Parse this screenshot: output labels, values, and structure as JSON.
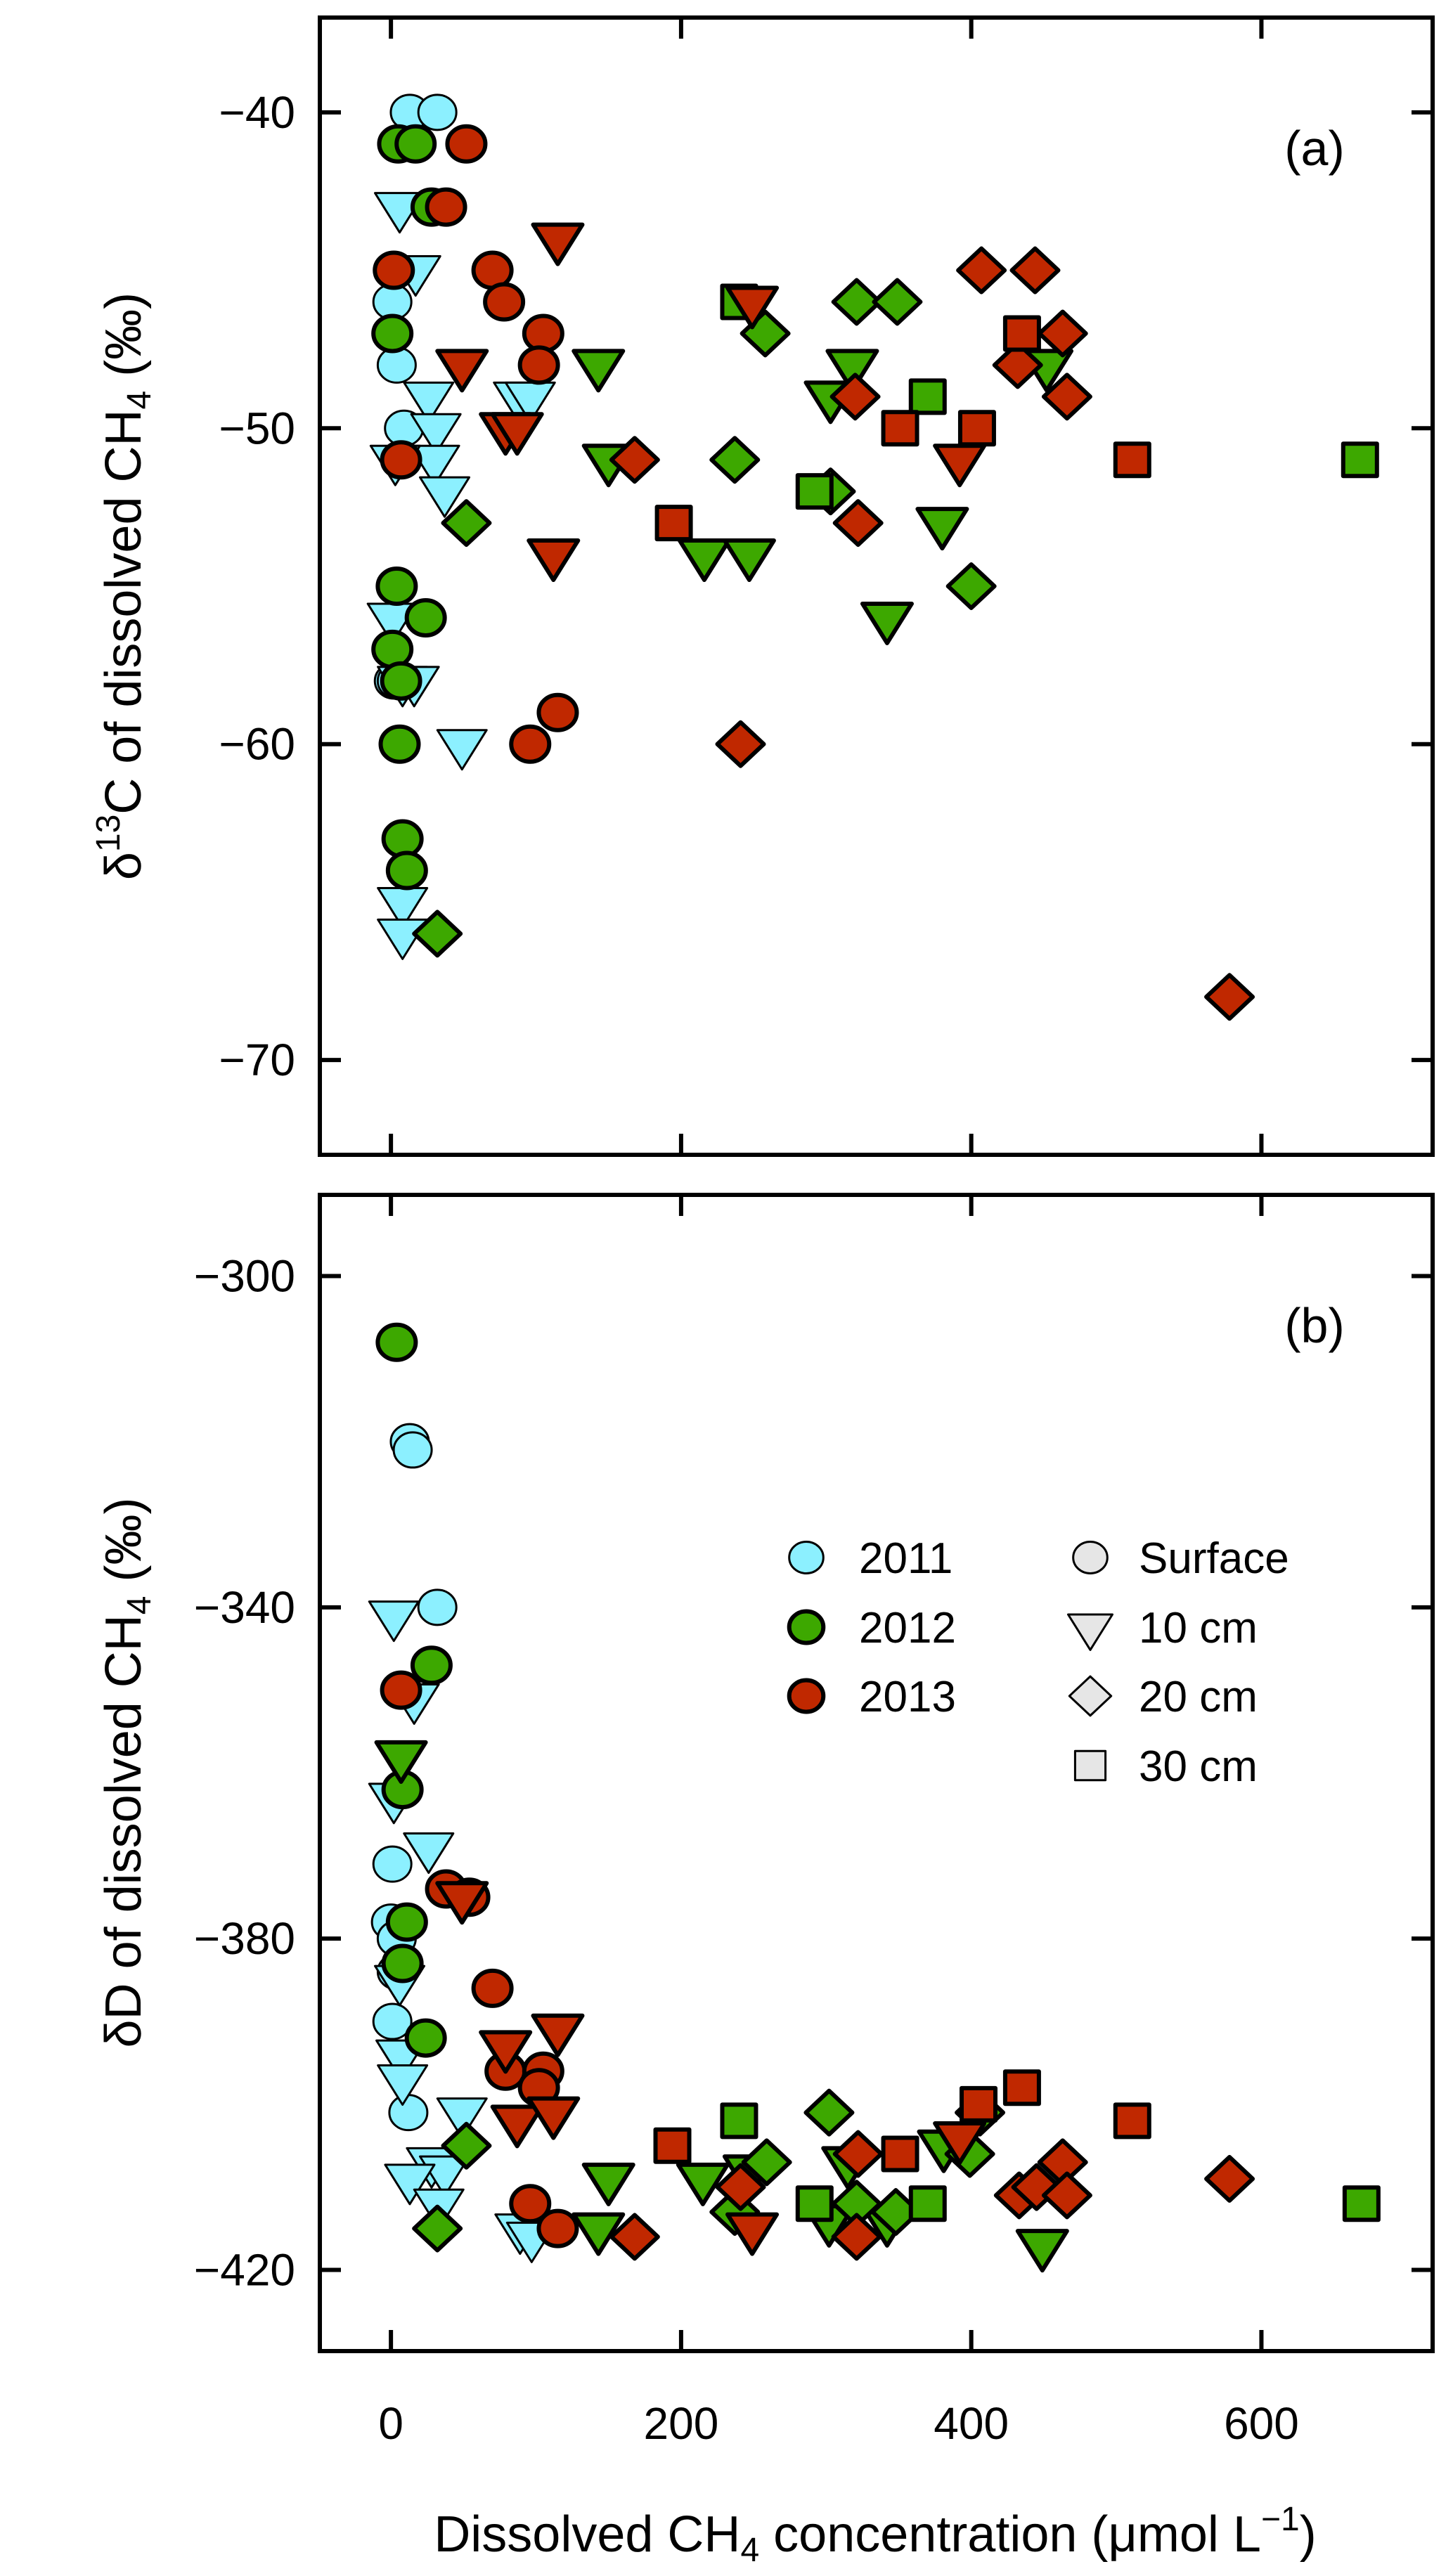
{
  "colors": {
    "2011": "#8cf0ff",
    "2012": "#3da800",
    "2013": "#c02800",
    "depth_legend": "#e6e6e6"
  },
  "legend": {
    "placement": "center-right of panel b",
    "years": [
      {
        "label": "2011",
        "color": "#8cf0ff"
      },
      {
        "label": "2012",
        "color": "#3da800"
      },
      {
        "label": "2013",
        "color": "#c02800"
      }
    ],
    "depths": [
      {
        "label": "Surface",
        "shape": "circle"
      },
      {
        "label": "10 cm",
        "shape": "triangle-down"
      },
      {
        "label": "20 cm",
        "shape": "diamond"
      },
      {
        "label": "30 cm",
        "shape": "square"
      }
    ]
  },
  "xaxis": {
    "label_main": "Dissolved CH",
    "label_sub": "4",
    "label_rest": " concentration (μmol L",
    "label_sup": "−1",
    "label_end": ")",
    "ticks": [
      0,
      200,
      400,
      600
    ],
    "tick_labels": [
      "0",
      "200",
      "400",
      "600"
    ],
    "xlim": [
      -49,
      718
    ]
  },
  "chart_data": [
    {
      "type": "scatter",
      "panel_label": "(a)",
      "ylabel": {
        "pre": "δ",
        "sup": "13",
        "mid": "C of dissolved CH",
        "sub": "4",
        "post": " (‰)"
      },
      "ylim": [
        -73,
        -37
      ],
      "yticks": [
        -40,
        -50,
        -60,
        -70
      ],
      "ytick_labels": [
        "−40",
        "−50",
        "−60",
        "−70"
      ],
      "grid": false,
      "series": [
        {
          "year": "2011",
          "depth": "Surface",
          "points": [
            [
              13,
              -40
            ],
            [
              32,
              -40
            ],
            [
              1,
              -46
            ],
            [
              4,
              -48
            ],
            [
              9,
              -50
            ],
            [
              2,
              -58
            ],
            [
              4,
              -58
            ]
          ]
        },
        {
          "year": "2011",
          "depth": "10 cm",
          "points": [
            [
              6,
              -43
            ],
            [
              17,
              -45
            ],
            [
              26,
              -49
            ],
            [
              31,
              -50
            ],
            [
              30,
              -51
            ],
            [
              3,
              -51
            ],
            [
              37,
              -52
            ],
            [
              88,
              -49
            ],
            [
              96,
              -49
            ],
            [
              1,
              -56
            ],
            [
              8,
              -58
            ],
            [
              16,
              -58
            ],
            [
              49,
              -60
            ],
            [
              8,
              -65
            ],
            [
              8,
              -66
            ]
          ]
        },
        {
          "year": "2012",
          "depth": "Surface",
          "points": [
            [
              5,
              -41
            ],
            [
              17,
              -41
            ],
            [
              28,
              -43
            ],
            [
              1,
              -47
            ],
            [
              4,
              -55
            ],
            [
              24,
              -56
            ],
            [
              1,
              -57
            ],
            [
              7,
              -58
            ],
            [
              6,
              -60
            ],
            [
              8,
              -63
            ],
            [
              11,
              -64
            ]
          ]
        },
        {
          "year": "2012",
          "depth": "10 cm",
          "points": [
            [
              143,
              -48
            ],
            [
              150,
              -51
            ],
            [
              216,
              -54
            ],
            [
              247,
              -54
            ],
            [
              303,
              -49
            ],
            [
              318,
              -48
            ],
            [
              342,
              -56
            ],
            [
              380,
              -53
            ],
            [
              452,
              -48
            ]
          ]
        },
        {
          "year": "2012",
          "depth": "20 cm",
          "points": [
            [
              32,
              -66
            ],
            [
              52,
              -53
            ],
            [
              237,
              -51
            ],
            [
              258,
              -47
            ],
            [
              303,
              -52
            ],
            [
              321,
              -46
            ],
            [
              349,
              -46
            ],
            [
              400,
              -55
            ]
          ]
        },
        {
          "year": "2012",
          "depth": "30 cm",
          "points": [
            [
              240,
              -46
            ],
            [
              292,
              -52
            ],
            [
              370,
              -49
            ],
            [
              668,
              -51
            ]
          ]
        },
        {
          "year": "2013",
          "depth": "Surface",
          "points": [
            [
              52,
              -41
            ],
            [
              38,
              -43
            ],
            [
              2,
              -45
            ],
            [
              70,
              -45
            ],
            [
              78,
              -46
            ],
            [
              105,
              -47
            ],
            [
              102,
              -48
            ],
            [
              7,
              -51
            ],
            [
              115,
              -59
            ],
            [
              96,
              -60
            ]
          ]
        },
        {
          "year": "2013",
          "depth": "10 cm",
          "points": [
            [
              115,
              -44
            ],
            [
              49,
              -48
            ],
            [
              79,
              -50
            ],
            [
              87,
              -50
            ],
            [
              112,
              -54
            ],
            [
              249,
              -46
            ],
            [
              392,
              -51
            ]
          ]
        },
        {
          "year": "2013",
          "depth": "20 cm",
          "points": [
            [
              168,
              -51
            ],
            [
              241,
              -60
            ],
            [
              320,
              -49
            ],
            [
              322,
              -53
            ],
            [
              407,
              -45
            ],
            [
              444,
              -45
            ],
            [
              463,
              -47
            ],
            [
              432,
              -48
            ],
            [
              466,
              -49
            ],
            [
              578,
              -68
            ]
          ]
        },
        {
          "year": "2013",
          "depth": "30 cm",
          "points": [
            [
              195,
              -53
            ],
            [
              351,
              -50
            ],
            [
              404,
              -50
            ],
            [
              435,
              -47
            ],
            [
              511,
              -51
            ]
          ]
        }
      ]
    },
    {
      "type": "scatter",
      "panel_label": "(b)",
      "ylabel": {
        "pre": "δD of dissolved CH",
        "sub": "4",
        "post": " (‰)"
      },
      "ylim": [
        -429.8,
        -290.2
      ],
      "yticks": [
        -300,
        -340,
        -380,
        -420
      ],
      "ytick_labels": [
        "−300",
        "−340",
        "−380",
        "−420"
      ],
      "grid": false,
      "series": [
        {
          "year": "2011",
          "depth": "Surface",
          "points": [
            [
              13,
              -320
            ],
            [
              15,
              -321
            ],
            [
              32,
              -340
            ],
            [
              1,
              -371
            ],
            [
              0,
              -378
            ],
            [
              4,
              -380
            ],
            [
              4,
              -384
            ],
            [
              1,
              -390
            ],
            [
              12,
              -401
            ]
          ]
        },
        {
          "year": "2011",
          "depth": "10 cm",
          "points": [
            [
              2,
              -341
            ],
            [
              16,
              -351
            ],
            [
              2,
              -363
            ],
            [
              26,
              -369
            ],
            [
              6,
              -385
            ],
            [
              7,
              -394
            ],
            [
              8,
              -397
            ],
            [
              49,
              -401
            ],
            [
              28,
              -407
            ],
            [
              37,
              -408
            ],
            [
              13,
              -409
            ],
            [
              33,
              -412
            ],
            [
              89,
              -415
            ],
            [
              97,
              -416
            ]
          ]
        },
        {
          "year": "2012",
          "depth": "Surface",
          "points": [
            [
              4,
              -308
            ],
            [
              28,
              -347
            ],
            [
              8,
              -362
            ],
            [
              11,
              -378
            ],
            [
              8,
              -383
            ],
            [
              24,
              -392
            ]
          ]
        },
        {
          "year": "2012",
          "depth": "10 cm",
          "points": [
            [
              7,
              -358
            ],
            [
              143,
              -415
            ],
            [
              150,
              -409
            ],
            [
              215,
              -409
            ],
            [
              247,
              -408
            ],
            [
              315,
              -407
            ],
            [
              302,
              -414
            ],
            [
              342,
              -414
            ],
            [
              381,
              -405
            ],
            [
              449,
              -417
            ]
          ]
        },
        {
          "year": "2012",
          "depth": "20 cm",
          "points": [
            [
              52,
              -405
            ],
            [
              32,
              -415
            ],
            [
              259,
              -407
            ],
            [
              237,
              -413
            ],
            [
              302,
              -401
            ],
            [
              321,
              -412
            ],
            [
              348,
              -413
            ],
            [
              399,
              -406
            ],
            [
              406,
              -401
            ]
          ]
        },
        {
          "year": "2012",
          "depth": "30 cm",
          "points": [
            [
              240,
              -402
            ],
            [
              292,
              -412
            ],
            [
              370,
              -412
            ],
            [
              669,
              -412
            ]
          ]
        },
        {
          "year": "2013",
          "depth": "Surface",
          "points": [
            [
              7,
              -350
            ],
            [
              38,
              -374
            ],
            [
              54,
              -375
            ],
            [
              70,
              -386
            ],
            [
              79,
              -396
            ],
            [
              105,
              -396
            ],
            [
              102,
              -398
            ],
            [
              96,
              -412
            ],
            [
              115,
              -415
            ]
          ]
        },
        {
          "year": "2013",
          "depth": "10 cm",
          "points": [
            [
              49,
              -375
            ],
            [
              115,
              -391
            ],
            [
              79,
              -393
            ],
            [
              87,
              -402
            ],
            [
              112,
              -401
            ],
            [
              249,
              -415
            ],
            [
              392,
              -404
            ]
          ]
        },
        {
          "year": "2013",
          "depth": "20 cm",
          "points": [
            [
              168,
              -416
            ],
            [
              241,
              -410
            ],
            [
              322,
              -406
            ],
            [
              321,
              -416
            ],
            [
              433,
              -411
            ],
            [
              445,
              -410
            ],
            [
              463,
              -407
            ],
            [
              466,
              -411
            ],
            [
              578,
              -409
            ]
          ]
        },
        {
          "year": "2013",
          "depth": "30 cm",
          "points": [
            [
              194,
              -405
            ],
            [
              351,
              -406
            ],
            [
              405,
              -400
            ],
            [
              435,
              -398
            ],
            [
              511,
              -402
            ]
          ]
        }
      ]
    }
  ]
}
